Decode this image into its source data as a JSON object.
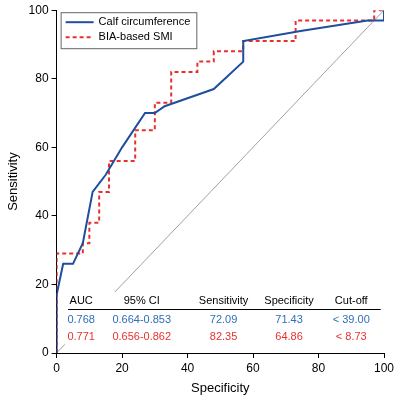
{
  "chart_data": {
    "type": "line",
    "xlabel": "Specificity",
    "ylabel": "Sensitivity",
    "xlim": [
      0,
      100
    ],
    "ylim": [
      0,
      100
    ],
    "xticks": [
      0,
      20,
      40,
      60,
      80,
      100
    ],
    "yticks": [
      0,
      20,
      40,
      60,
      80,
      100
    ],
    "grid": false,
    "legend": "top-left",
    "series": [
      {
        "name": "Calf circumference",
        "color": "#1f4e9c",
        "line_style": "solid",
        "x": [
          0,
          0,
          2,
          5,
          8,
          11,
          15,
          20,
          27,
          30,
          33,
          45,
          48,
          57,
          57,
          75,
          95,
          100,
          100
        ],
        "values": [
          0,
          17,
          26,
          26,
          32,
          47,
          52,
          60,
          70,
          70,
          72,
          76,
          77,
          85,
          91,
          94,
          97,
          97,
          100
        ]
      },
      {
        "name": "BIA-based SMI",
        "color": "#e8312f",
        "line_style": "dashed",
        "x": [
          0,
          0,
          8,
          8,
          10,
          10,
          13,
          13,
          16,
          16,
          24,
          24,
          30,
          30,
          35,
          35,
          43,
          43,
          48,
          48,
          57,
          57,
          73,
          73,
          97,
          97,
          100
        ],
        "values": [
          0,
          29,
          29,
          32,
          32,
          38,
          38,
          47,
          47,
          56,
          56,
          65,
          65,
          73,
          73,
          82,
          82,
          85,
          85,
          88,
          88,
          91,
          91,
          97,
          97,
          100,
          100
        ]
      },
      {
        "color": "#a0a0a0",
        "line_style": "solid",
        "x": [
          0,
          100
        ],
        "values": [
          0,
          100
        ]
      }
    ],
    "table": {
      "header": [
        "AUC",
        "95% CI",
        "Sensitivity",
        "Specificity",
        "Cut-off"
      ],
      "rows": [
        {
          "color": "#2e6fb5",
          "cells": [
            0.768,
            "0.664-0.853",
            72.09,
            71.43,
            "< 39.00"
          ]
        },
        {
          "color": "#e8312f",
          "cells": [
            0.771,
            "0.656-0.862",
            82.35,
            64.86,
            "< 8.73"
          ]
        }
      ]
    }
  }
}
